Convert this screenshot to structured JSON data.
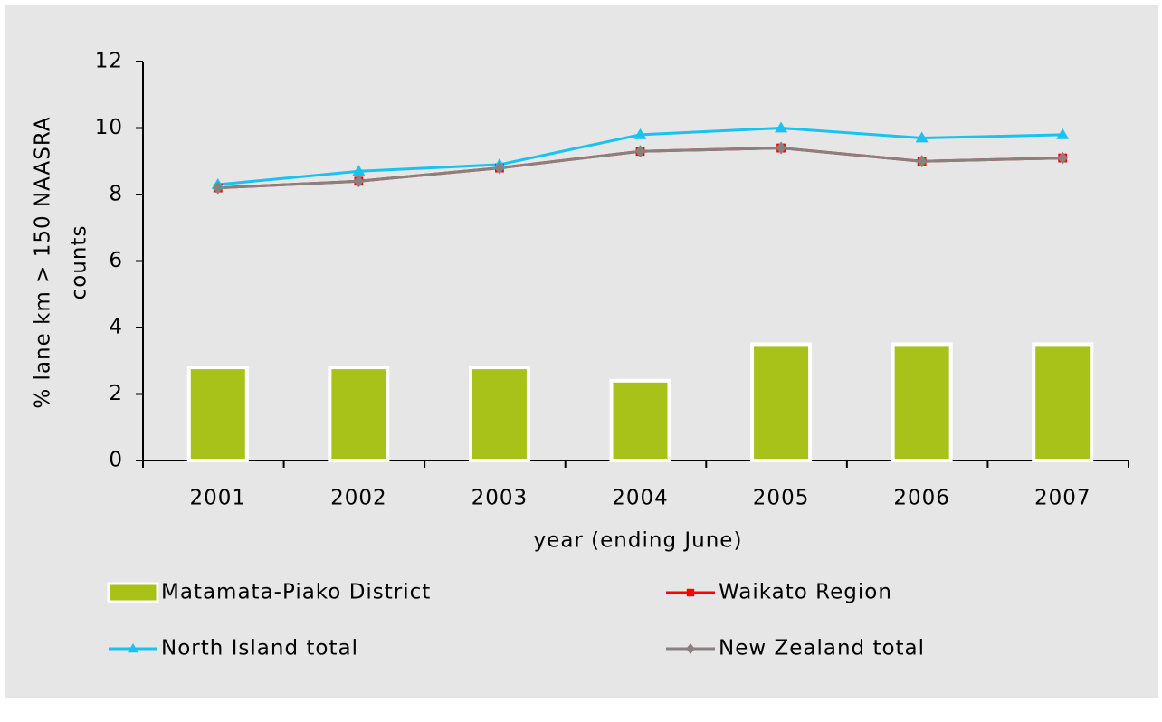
{
  "chart_data": {
    "type": "combo",
    "categories": [
      "2001",
      "2002",
      "2003",
      "2004",
      "2005",
      "2006",
      "2007"
    ],
    "xlabel": "year (ending June)",
    "ylabel": [
      "% lane km > 150 NAASRA",
      "counts"
    ],
    "ylim": [
      0,
      12
    ],
    "yticks": [
      0,
      2,
      4,
      6,
      8,
      10,
      12
    ],
    "legend": "bottom",
    "series": [
      {
        "name": "Matamata-Piako District",
        "type": "bar",
        "color": "#a9c21a",
        "values": [
          2.8,
          2.8,
          2.8,
          2.4,
          3.5,
          3.5,
          3.5
        ]
      },
      {
        "name": "Waikato Region",
        "type": "line",
        "marker": "square",
        "color": "#ff0000",
        "values": [
          8.2,
          8.4,
          8.8,
          9.3,
          9.4,
          9.0,
          9.1
        ]
      },
      {
        "name": "North Island total",
        "type": "line",
        "marker": "triangle",
        "color": "#19c3f0",
        "values": [
          8.3,
          8.7,
          8.9,
          9.8,
          10.0,
          9.7,
          9.8
        ]
      },
      {
        "name": "New Zealand total",
        "type": "line",
        "marker": "diamond",
        "color": "#8a8080",
        "values": [
          8.2,
          8.4,
          8.8,
          9.3,
          9.4,
          9.0,
          9.1
        ]
      }
    ]
  }
}
